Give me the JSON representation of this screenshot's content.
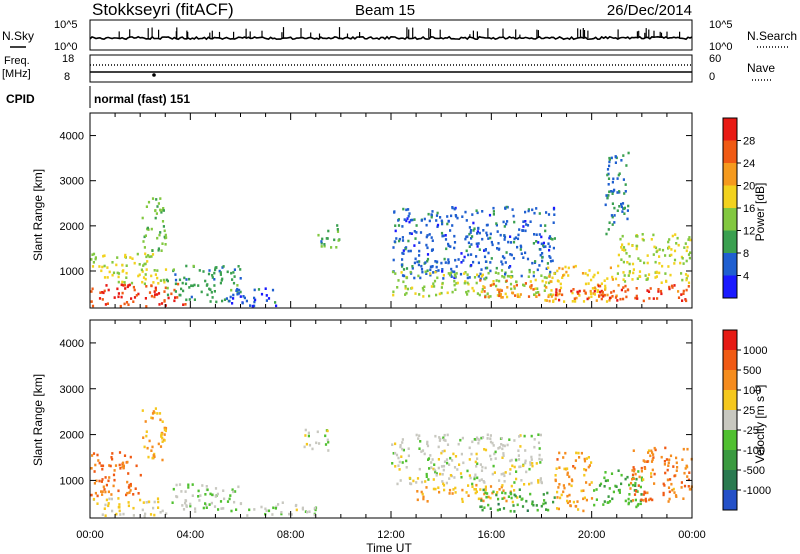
{
  "header": {
    "station": "Stokkseyri (fitACF)",
    "beam": "Beam 15",
    "date": "26/Dec/2014"
  },
  "top_panel": {
    "left_label": "N.Sky",
    "left_ticks": [
      "10^5",
      "10^0"
    ],
    "right_ticks": [
      "10^5",
      "10^0"
    ],
    "right_label": "N.Search"
  },
  "freq_panel": {
    "left_label_1": "Freq.",
    "left_label_2": "[MHz]",
    "left_ticks": [
      "18",
      "8"
    ],
    "right_ticks": [
      "60",
      "0"
    ],
    "right_label": "Nave"
  },
  "cpid": {
    "label": "CPID",
    "value": "normal (fast) 151"
  },
  "axes": {
    "ylabel": "Slant Range [km]",
    "yticks": [
      "4000",
      "3000",
      "2000",
      "1000"
    ],
    "xticks": [
      "00:00",
      "04:00",
      "08:00",
      "12:00",
      "16:00",
      "20:00",
      "00:00"
    ],
    "xlabel": "Time UT"
  },
  "chart_data": [
    {
      "type": "heatmap",
      "title": "Power [dB]",
      "x_range": [
        "00:00",
        "24:00"
      ],
      "ylim": [
        180,
        4500
      ],
      "colorbar": {
        "label": "Power [dB]",
        "ticks": [
          "28",
          "24",
          "20",
          "16",
          "12",
          "8",
          "4"
        ],
        "range": [
          0,
          30
        ]
      },
      "colors": [
        "#1a1aff",
        "#1f5fd0",
        "#3aa050",
        "#82c840",
        "#f2d21e",
        "#f59a1e",
        "#f05a14",
        "#e81a14"
      ],
      "regions": [
        {
          "t": [
            0.0,
            3.8
          ],
          "r": [
            200,
            700
          ],
          "v": 26
        },
        {
          "t": [
            0.0,
            3.0
          ],
          "r": [
            700,
            1400
          ],
          "v": 15
        },
        {
          "t": [
            2.0,
            3.0
          ],
          "r": [
            1400,
            2600
          ],
          "v": 12
        },
        {
          "t": [
            3.0,
            6.0
          ],
          "r": [
            300,
            1100
          ],
          "v": 9
        },
        {
          "t": [
            5.5,
            7.5
          ],
          "r": [
            200,
            600
          ],
          "v": 5
        },
        {
          "t": [
            9.0,
            10.0
          ],
          "r": [
            1500,
            2000
          ],
          "v": 10
        },
        {
          "t": [
            12.0,
            18.5
          ],
          "r": [
            800,
            2400
          ],
          "v": 6
        },
        {
          "t": [
            12.0,
            18.5
          ],
          "r": [
            400,
            1000
          ],
          "v": 14
        },
        {
          "t": [
            15.5,
            18.0
          ],
          "r": [
            400,
            800
          ],
          "v": 22
        },
        {
          "t": [
            18.0,
            21.0
          ],
          "r": [
            300,
            1100
          ],
          "v": 18
        },
        {
          "t": [
            18.5,
            20.0
          ],
          "r": [
            300,
            600
          ],
          "v": 26
        },
        {
          "t": [
            20.0,
            24.0
          ],
          "r": [
            300,
            700
          ],
          "v": 25
        },
        {
          "t": [
            21.0,
            24.0
          ],
          "r": [
            700,
            1800
          ],
          "v": 15
        },
        {
          "t": [
            20.5,
            21.5
          ],
          "r": [
            1800,
            3600
          ],
          "v": 7
        }
      ]
    },
    {
      "type": "heatmap",
      "title": "Velocity [m s^-1]",
      "x_range": [
        "00:00",
        "24:00"
      ],
      "ylim": [
        180,
        4500
      ],
      "colorbar": {
        "label": "Velocity [m s^-1]",
        "ticks": [
          "1000",
          "500",
          "100",
          "25",
          "-25",
          "-100",
          "-500",
          "-1000"
        ],
        "range": [
          -1000,
          1000
        ]
      },
      "colors": [
        "#2450c8",
        "#2a7a50",
        "#3a9a40",
        "#50c030",
        "#c8c8c0",
        "#f5c81e",
        "#f58c1e",
        "#f05a14",
        "#e61a14"
      ],
      "regions": [
        {
          "t": [
            0.0,
            2.0
          ],
          "r": [
            600,
            1600
          ],
          "v": 600
        },
        {
          "t": [
            0.0,
            3.0
          ],
          "r": [
            200,
            600
          ],
          "v": 150
        },
        {
          "t": [
            2.0,
            3.0
          ],
          "r": [
            1400,
            2600
          ],
          "v": 300
        },
        {
          "t": [
            3.0,
            6.0
          ],
          "r": [
            300,
            900
          ],
          "v": -80
        },
        {
          "t": [
            6.0,
            9.0
          ],
          "r": [
            200,
            500
          ],
          "v": -60
        },
        {
          "t": [
            8.5,
            9.5
          ],
          "r": [
            1600,
            2100
          ],
          "v": 0
        },
        {
          "t": [
            12.0,
            18.0
          ],
          "r": [
            900,
            2000
          ],
          "v": 0
        },
        {
          "t": [
            13.0,
            17.0
          ],
          "r": [
            500,
            900
          ],
          "v": 300
        },
        {
          "t": [
            15.5,
            18.5
          ],
          "r": [
            300,
            800
          ],
          "v": -400
        },
        {
          "t": [
            18.5,
            20.0
          ],
          "r": [
            300,
            1600
          ],
          "v": 400
        },
        {
          "t": [
            20.0,
            22.0
          ],
          "r": [
            400,
            1200
          ],
          "v": -300
        },
        {
          "t": [
            21.5,
            24.0
          ],
          "r": [
            500,
            1700
          ],
          "v": 500
        }
      ]
    }
  ]
}
